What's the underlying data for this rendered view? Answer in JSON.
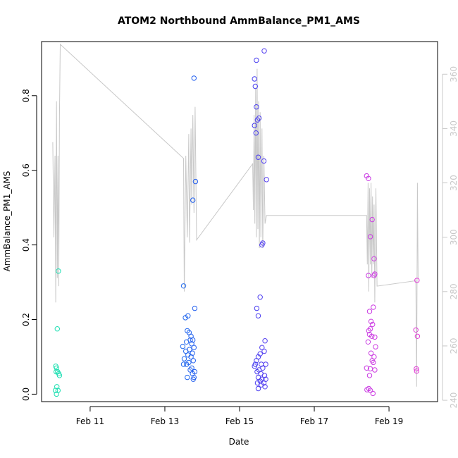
{
  "chart_data": {
    "type": "scatter",
    "title": "ATOM2 Northbound AmmBalance_PM1_AMS",
    "xlabel": "Date",
    "ylabel": "AmmBalance_PM1_AMS",
    "x_tick_labels": [
      "Feb 11",
      "Feb 13",
      "Feb 15",
      "Feb 17",
      "Feb 19"
    ],
    "x_ticks": [
      11,
      13,
      15,
      17,
      19
    ],
    "xlim": [
      9.7,
      20.3
    ],
    "ylim": [
      -0.02,
      0.945
    ],
    "y_ticks": [
      0.0,
      0.2,
      0.4,
      0.6,
      0.8
    ],
    "y_tick_labels": [
      "0.0",
      "0.2",
      "0.4",
      "0.6",
      "0.8"
    ],
    "y2lim": [
      239.5,
      372
    ],
    "y2_ticks": [
      240,
      260,
      280,
      300,
      320,
      340,
      360
    ],
    "y2_tick_labels": [
      "240",
      "260",
      "280",
      "300",
      "320",
      "340",
      "360"
    ],
    "colors": {
      "axis": "#000000",
      "secondary_axis": "#c8c8c8",
      "line": "#c8c8c8",
      "points_gradient": [
        "#1de0b0",
        "#22c2e4",
        "#1f6fee",
        "#2f3ef0",
        "#7a3cf0",
        "#c43ce6",
        "#e23cd6"
      ]
    },
    "series": [
      {
        "type": "scatter",
        "axis": "left",
        "points": [
          [
            10.15,
            0.33
          ],
          [
            10.12,
            0.175
          ],
          [
            10.08,
            0.075
          ],
          [
            10.1,
            0.07
          ],
          [
            10.13,
            0.06
          ],
          [
            10.16,
            0.055
          ],
          [
            10.09,
            0.06
          ],
          [
            10.18,
            0.05
          ],
          [
            10.11,
            0.02
          ],
          [
            10.14,
            0.01
          ],
          [
            10.07,
            0.01
          ],
          [
            10.1,
            0.0
          ],
          [
            13.5,
            0.29
          ],
          [
            13.78,
            0.847
          ],
          [
            13.82,
            0.57
          ],
          [
            13.75,
            0.52
          ],
          [
            13.8,
            0.23
          ],
          [
            13.62,
            0.21
          ],
          [
            13.55,
            0.205
          ],
          [
            13.6,
            0.17
          ],
          [
            13.65,
            0.165
          ],
          [
            13.7,
            0.155
          ],
          [
            13.75,
            0.145
          ],
          [
            13.68,
            0.145
          ],
          [
            13.58,
            0.14
          ],
          [
            13.72,
            0.135
          ],
          [
            13.48,
            0.128
          ],
          [
            13.78,
            0.125
          ],
          [
            13.66,
            0.12
          ],
          [
            13.56,
            0.115
          ],
          [
            13.74,
            0.11
          ],
          [
            13.62,
            0.105
          ],
          [
            13.7,
            0.1
          ],
          [
            13.52,
            0.095
          ],
          [
            13.76,
            0.09
          ],
          [
            13.64,
            0.085
          ],
          [
            13.5,
            0.08
          ],
          [
            13.58,
            0.08
          ],
          [
            13.72,
            0.07
          ],
          [
            13.68,
            0.065
          ],
          [
            13.8,
            0.06
          ],
          [
            13.74,
            0.055
          ],
          [
            13.6,
            0.045
          ],
          [
            13.78,
            0.045
          ],
          [
            13.76,
            0.04
          ],
          [
            15.66,
            0.92
          ],
          [
            15.45,
            0.895
          ],
          [
            15.4,
            0.845
          ],
          [
            15.42,
            0.825
          ],
          [
            15.45,
            0.77
          ],
          [
            15.52,
            0.74
          ],
          [
            15.48,
            0.735
          ],
          [
            15.4,
            0.72
          ],
          [
            15.44,
            0.7
          ],
          [
            15.5,
            0.635
          ],
          [
            15.65,
            0.625
          ],
          [
            15.72,
            0.575
          ],
          [
            15.62,
            0.405
          ],
          [
            15.6,
            0.4
          ],
          [
            15.55,
            0.26
          ],
          [
            15.46,
            0.23
          ],
          [
            15.5,
            0.21
          ],
          [
            15.68,
            0.143
          ],
          [
            15.6,
            0.125
          ],
          [
            15.66,
            0.115
          ],
          [
            15.55,
            0.108
          ],
          [
            15.5,
            0.1
          ],
          [
            15.45,
            0.09
          ],
          [
            15.42,
            0.08
          ],
          [
            15.4,
            0.075
          ],
          [
            15.58,
            0.08
          ],
          [
            15.7,
            0.08
          ],
          [
            15.62,
            0.07
          ],
          [
            15.52,
            0.065
          ],
          [
            15.47,
            0.06
          ],
          [
            15.57,
            0.055
          ],
          [
            15.67,
            0.05
          ],
          [
            15.5,
            0.045
          ],
          [
            15.6,
            0.04
          ],
          [
            15.7,
            0.04
          ],
          [
            15.55,
            0.035
          ],
          [
            15.65,
            0.03
          ],
          [
            15.48,
            0.03
          ],
          [
            15.58,
            0.025
          ],
          [
            15.68,
            0.02
          ],
          [
            15.5,
            0.015
          ],
          [
            18.4,
            0.585
          ],
          [
            18.45,
            0.578
          ],
          [
            18.55,
            0.468
          ],
          [
            18.5,
            0.422
          ],
          [
            18.6,
            0.363
          ],
          [
            18.62,
            0.322
          ],
          [
            18.6,
            0.318
          ],
          [
            18.45,
            0.318
          ],
          [
            18.58,
            0.233
          ],
          [
            18.48,
            0.222
          ],
          [
            18.52,
            0.195
          ],
          [
            18.56,
            0.187
          ],
          [
            18.5,
            0.175
          ],
          [
            18.46,
            0.17
          ],
          [
            18.48,
            0.16
          ],
          [
            18.54,
            0.155
          ],
          [
            18.62,
            0.153
          ],
          [
            18.44,
            0.14
          ],
          [
            18.64,
            0.127
          ],
          [
            18.52,
            0.11
          ],
          [
            18.6,
            0.1
          ],
          [
            18.55,
            0.09
          ],
          [
            18.58,
            0.085
          ],
          [
            18.4,
            0.07
          ],
          [
            18.5,
            0.068
          ],
          [
            18.62,
            0.065
          ],
          [
            18.48,
            0.05
          ],
          [
            18.46,
            0.015
          ],
          [
            18.41,
            0.012
          ],
          [
            18.5,
            0.01
          ],
          [
            18.57,
            0.002
          ],
          [
            19.75,
            0.305
          ],
          [
            19.72,
            0.172
          ],
          [
            19.76,
            0.155
          ],
          [
            19.73,
            0.068
          ],
          [
            19.74,
            0.062
          ]
        ]
      },
      {
        "type": "line",
        "axis": "right",
        "points": [
          [
            10.0,
            335
          ],
          [
            10.03,
            300
          ],
          [
            10.06,
            330
          ],
          [
            10.08,
            276
          ],
          [
            10.1,
            350
          ],
          [
            10.12,
            285
          ],
          [
            10.14,
            330
          ],
          [
            10.16,
            282
          ],
          [
            10.18,
            345
          ],
          [
            10.2,
            371
          ],
          [
            13.5,
            329
          ],
          [
            13.52,
            280
          ],
          [
            13.56,
            330
          ],
          [
            13.6,
            300
          ],
          [
            13.64,
            338
          ],
          [
            13.66,
            298
          ],
          [
            13.7,
            340
          ],
          [
            13.72,
            312
          ],
          [
            13.75,
            345
          ],
          [
            13.78,
            309
          ],
          [
            13.81,
            348
          ],
          [
            13.85,
            299
          ],
          [
            15.35,
            327
          ],
          [
            15.37,
            310
          ],
          [
            15.39,
            345
          ],
          [
            15.41,
            305
          ],
          [
            15.43,
            355
          ],
          [
            15.45,
            300
          ],
          [
            15.47,
            362
          ],
          [
            15.49,
            303
          ],
          [
            15.51,
            350
          ],
          [
            15.53,
            296
          ],
          [
            15.55,
            346
          ],
          [
            15.57,
            300
          ],
          [
            15.6,
            340
          ],
          [
            15.62,
            296
          ],
          [
            15.65,
            330
          ],
          [
            15.68,
            305
          ],
          [
            15.72,
            308
          ],
          [
            18.4,
            308
          ],
          [
            18.42,
            290
          ],
          [
            18.44,
            320
          ],
          [
            18.46,
            280
          ],
          [
            18.48,
            318
          ],
          [
            18.5,
            290
          ],
          [
            18.52,
            320
          ],
          [
            18.54,
            285
          ],
          [
            18.56,
            315
          ],
          [
            18.58,
            290
          ],
          [
            18.6,
            312
          ],
          [
            18.62,
            276
          ],
          [
            18.65,
            318
          ],
          [
            18.68,
            282
          ],
          [
            19.72,
            284
          ],
          [
            19.74,
            245
          ],
          [
            19.76,
            320
          ],
          [
            19.78,
            285
          ]
        ]
      }
    ]
  }
}
